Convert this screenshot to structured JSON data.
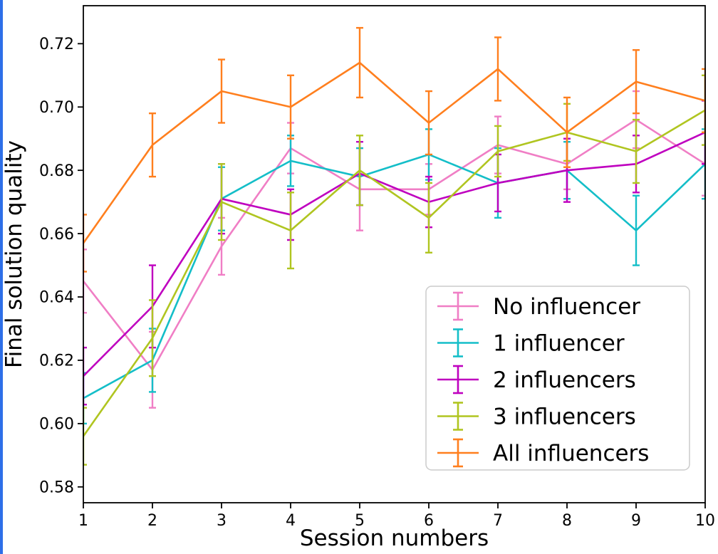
{
  "figure": {
    "background": "#ffffff",
    "edge_highlight_color": "#2e6fe8"
  },
  "chart_data": {
    "type": "line",
    "title": "",
    "xlabel": "Session numbers",
    "ylabel": "Final solution quality",
    "x": [
      1,
      2,
      3,
      4,
      5,
      6,
      7,
      8,
      9,
      10
    ],
    "xticks": [
      1,
      2,
      3,
      4,
      5,
      6,
      7,
      8,
      9,
      10
    ],
    "yticks": [
      0.58,
      0.6,
      0.62,
      0.64,
      0.66,
      0.68,
      0.7,
      0.72
    ],
    "xlim": [
      1,
      10
    ],
    "ylim": [
      0.575,
      0.732
    ],
    "grid": false,
    "legend_position": "lower-right",
    "series": [
      {
        "name": "No influencer",
        "color": "#f07ec5",
        "values": [
          0.645,
          0.617,
          0.656,
          0.687,
          0.674,
          0.674,
          0.688,
          0.682,
          0.696,
          0.682
        ],
        "errors": [
          0.01,
          0.012,
          0.009,
          0.008,
          0.013,
          0.008,
          0.009,
          0.008,
          0.009,
          0.01
        ]
      },
      {
        "name": "1 influencer",
        "color": "#14bec8",
        "values": [
          0.608,
          0.62,
          0.671,
          0.683,
          0.678,
          0.685,
          0.676,
          0.68,
          0.661,
          0.682
        ],
        "errors": [
          0.008,
          0.01,
          0.01,
          0.008,
          0.009,
          0.008,
          0.011,
          0.009,
          0.011,
          0.011
        ]
      },
      {
        "name": "2 influencers",
        "color": "#bf00bf",
        "values": [
          0.615,
          0.637,
          0.671,
          0.666,
          0.679,
          0.67,
          0.676,
          0.68,
          0.682,
          0.692
        ],
        "errors": [
          0.009,
          0.013,
          0.011,
          0.008,
          0.01,
          0.008,
          0.009,
          0.01,
          0.009,
          0.01
        ]
      },
      {
        "name": "3 influencers",
        "color": "#b0c520",
        "values": [
          0.596,
          0.627,
          0.67,
          0.661,
          0.68,
          0.665,
          0.686,
          0.692,
          0.686,
          0.699
        ],
        "errors": [
          0.009,
          0.012,
          0.012,
          0.012,
          0.011,
          0.011,
          0.008,
          0.009,
          0.01,
          0.011
        ]
      },
      {
        "name": "All influencers",
        "color": "#ff7f1e",
        "values": [
          0.657,
          0.688,
          0.705,
          0.7,
          0.714,
          0.695,
          0.712,
          0.692,
          0.708,
          0.702
        ],
        "errors": [
          0.009,
          0.01,
          0.01,
          0.01,
          0.011,
          0.01,
          0.01,
          0.011,
          0.01,
          0.01
        ]
      }
    ]
  }
}
